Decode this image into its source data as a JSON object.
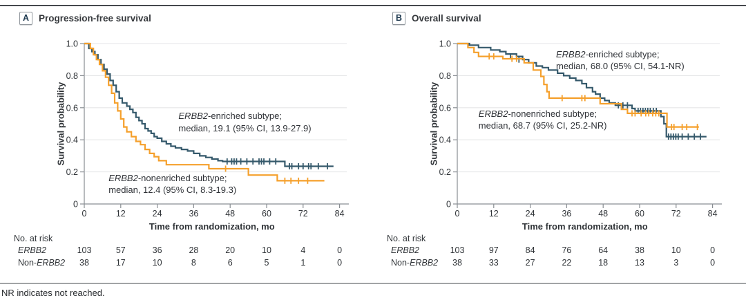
{
  "figure": {
    "footnote": "NR indicates not reached.",
    "colors": {
      "enriched": "#35596B",
      "nonenriched": "#F5A02C",
      "grid": "#E5E6E7",
      "axis": "#898E93",
      "rule": "#45484D"
    }
  },
  "chart_data": [
    {
      "type": "line",
      "subtype": "kaplan-meier-step",
      "panel_tag": "A",
      "title": "Progression-free survival",
      "xlabel": "Time from randomization, mo",
      "ylabel": "Survival probability",
      "xlim": [
        0,
        84
      ],
      "ylim": [
        0,
        1
      ],
      "xticks": [
        0,
        12,
        24,
        36,
        48,
        60,
        72,
        84
      ],
      "ytick_labels": [
        "1.0",
        "0.8",
        "0.6",
        "0.4",
        "0.2",
        "0"
      ],
      "ytick_values": [
        1,
        0.8,
        0.6,
        0.4,
        0.2,
        0
      ],
      "grid": "horizontal",
      "legend_position": "annotations-on-plot",
      "series": [
        {
          "gene": "ERBB2",
          "name_suffix": "-enriched subtype;",
          "full_name": "ERBB2-enriched subtype",
          "median_text": "median, 19.1 (95% CI, 13.9-27.9)",
          "color": "#35596B",
          "label_anchor": [
            31,
            0.585
          ],
          "end_time": 82,
          "steps": [
            [
              0,
              1
            ],
            [
              1.5,
              0.97
            ],
            [
              2.5,
              0.95
            ],
            [
              3.5,
              0.93
            ],
            [
              4.5,
              0.9
            ],
            [
              5.5,
              0.87
            ],
            [
              6.5,
              0.84
            ],
            [
              7.5,
              0.81
            ],
            [
              8.5,
              0.77
            ],
            [
              9.5,
              0.74
            ],
            [
              10.5,
              0.7
            ],
            [
              11.5,
              0.66
            ],
            [
              12.5,
              0.63
            ],
            [
              14,
              0.61
            ],
            [
              15,
              0.59
            ],
            [
              16,
              0.57
            ],
            [
              17,
              0.54
            ],
            [
              18,
              0.52
            ],
            [
              19,
              0.5
            ],
            [
              20,
              0.47
            ],
            [
              21,
              0.455
            ],
            [
              22,
              0.44
            ],
            [
              23,
              0.42
            ],
            [
              24,
              0.41
            ],
            [
              25.5,
              0.39
            ],
            [
              27,
              0.375
            ],
            [
              28.5,
              0.36
            ],
            [
              30,
              0.35
            ],
            [
              32,
              0.34
            ],
            [
              34,
              0.33
            ],
            [
              36,
              0.315
            ],
            [
              38,
              0.3
            ],
            [
              40,
              0.29
            ],
            [
              42,
              0.28
            ],
            [
              44,
              0.27
            ],
            [
              45.5,
              0.265
            ],
            [
              66,
              0.235
            ]
          ],
          "censors": [
            [
              47,
              0.265
            ],
            [
              48.5,
              0.265
            ],
            [
              49.3,
              0.265
            ],
            [
              50.1,
              0.265
            ],
            [
              51.5,
              0.265
            ],
            [
              53.5,
              0.265
            ],
            [
              55.5,
              0.265
            ],
            [
              57.5,
              0.265
            ],
            [
              58.3,
              0.265
            ],
            [
              59.1,
              0.265
            ],
            [
              61,
              0.265
            ],
            [
              63,
              0.265
            ],
            [
              67.5,
              0.235
            ],
            [
              68.3,
              0.235
            ],
            [
              70.5,
              0.235
            ],
            [
              72,
              0.235
            ],
            [
              73.8,
              0.235
            ],
            [
              74.6,
              0.235
            ],
            [
              77,
              0.235
            ],
            [
              80,
              0.235
            ]
          ]
        },
        {
          "gene": "ERBB2",
          "name_suffix": "-nonenriched subtype;",
          "full_name": "ERBB2-nonenriched subtype",
          "median_text": "median, 12.4 (95% CI, 8.3-19.3)",
          "color": "#F5A02C",
          "label_anchor": [
            8,
            0.2
          ],
          "end_time": 79,
          "steps": [
            [
              0,
              1
            ],
            [
              2,
              0.97
            ],
            [
              3,
              0.93
            ],
            [
              4,
              0.9
            ],
            [
              5,
              0.87
            ],
            [
              6,
              0.83
            ],
            [
              7,
              0.79
            ],
            [
              8,
              0.74
            ],
            [
              9,
              0.69
            ],
            [
              10,
              0.63
            ],
            [
              11,
              0.58
            ],
            [
              12,
              0.53
            ],
            [
              13,
              0.48
            ],
            [
              14,
              0.45
            ],
            [
              15.5,
              0.42
            ],
            [
              17,
              0.39
            ],
            [
              18.5,
              0.37
            ],
            [
              20,
              0.34
            ],
            [
              21.5,
              0.315
            ],
            [
              23,
              0.295
            ],
            [
              24.5,
              0.27
            ],
            [
              27,
              0.245
            ],
            [
              41,
              0.22
            ],
            [
              54,
              0.18
            ],
            [
              63.5,
              0.145
            ]
          ],
          "censors": [
            [
              46.5,
              0.22
            ],
            [
              66,
              0.145
            ],
            [
              68,
              0.145
            ],
            [
              70.5,
              0.145
            ],
            [
              73.5,
              0.145
            ]
          ]
        }
      ],
      "at_risk": {
        "heading": "No. at risk",
        "times": [
          0,
          12,
          24,
          36,
          48,
          60,
          72,
          84
        ],
        "rows": [
          {
            "label_prefix": "",
            "gene": "ERBB2",
            "counts": [
              103,
              57,
              36,
              28,
              20,
              10,
              4,
              0
            ]
          },
          {
            "label_prefix": "Non-",
            "gene": "ERBB2",
            "counts": [
              38,
              17,
              10,
              8,
              6,
              5,
              1,
              0
            ]
          }
        ]
      }
    },
    {
      "type": "line",
      "subtype": "kaplan-meier-step",
      "panel_tag": "B",
      "title": "Overall survival",
      "xlabel": "Time from randomization, mo",
      "ylabel": "Survival probability",
      "xlim": [
        0,
        84
      ],
      "ylim": [
        0,
        1
      ],
      "xticks": [
        0,
        12,
        24,
        36,
        48,
        60,
        72,
        84
      ],
      "ytick_labels": [
        "1.0",
        "0.8",
        "0.6",
        "0.4",
        "0.2",
        "0"
      ],
      "ytick_values": [
        1,
        0.8,
        0.6,
        0.4,
        0.2,
        0
      ],
      "grid": "horizontal",
      "legend_position": "annotations-on-plot",
      "series": [
        {
          "gene": "ERBB2",
          "name_suffix": "-enriched subtype;",
          "full_name": "ERBB2-enriched subtype",
          "median_text": "median, 68.0 (95% CI, 54.1-NR)",
          "color": "#35596B",
          "label_anchor": [
            32.5,
            0.97
          ],
          "end_time": 82,
          "steps": [
            [
              0,
              1
            ],
            [
              4,
              0.99
            ],
            [
              7,
              0.975
            ],
            [
              11,
              0.96
            ],
            [
              14,
              0.95
            ],
            [
              16,
              0.935
            ],
            [
              19.5,
              0.92
            ],
            [
              21.5,
              0.9
            ],
            [
              23.5,
              0.88
            ],
            [
              26,
              0.86
            ],
            [
              28,
              0.85
            ],
            [
              30,
              0.835
            ],
            [
              33,
              0.815
            ],
            [
              35,
              0.8
            ],
            [
              37,
              0.785
            ],
            [
              39,
              0.77
            ],
            [
              41,
              0.75
            ],
            [
              42.5,
              0.725
            ],
            [
              44.5,
              0.7
            ],
            [
              45.5,
              0.685
            ],
            [
              47,
              0.66
            ],
            [
              48.5,
              0.645
            ],
            [
              50,
              0.63
            ],
            [
              52,
              0.615
            ],
            [
              57.5,
              0.595
            ],
            [
              58.5,
              0.58
            ],
            [
              67,
              0.545
            ],
            [
              68,
              0.5
            ],
            [
              68.8,
              0.42
            ]
          ],
          "censors": [
            [
              17.5,
              0.92
            ],
            [
              20.3,
              0.9
            ],
            [
              53,
              0.615
            ],
            [
              54.5,
              0.615
            ],
            [
              56,
              0.615
            ],
            [
              59.5,
              0.58
            ],
            [
              60.3,
              0.58
            ],
            [
              61.1,
              0.58
            ],
            [
              61.9,
              0.58
            ],
            [
              62.7,
              0.58
            ],
            [
              63.5,
              0.58
            ],
            [
              64.5,
              0.58
            ],
            [
              65.5,
              0.58
            ],
            [
              69.5,
              0.42
            ],
            [
              70.3,
              0.42
            ],
            [
              71.1,
              0.42
            ],
            [
              71.9,
              0.42
            ],
            [
              72.7,
              0.42
            ],
            [
              74,
              0.42
            ],
            [
              76,
              0.42
            ],
            [
              78,
              0.42
            ],
            [
              80,
              0.42
            ]
          ]
        },
        {
          "gene": "ERBB2",
          "name_suffix": "-nonenriched subtype;",
          "full_name": "ERBB2-nonenriched subtype",
          "median_text": "median, 68.7 (95% CI, 25.2-NR)",
          "color": "#F5A02C",
          "label_anchor": [
            7,
            0.6
          ],
          "end_time": 79.5,
          "steps": [
            [
              0,
              1
            ],
            [
              3.5,
              0.975
            ],
            [
              5.5,
              0.945
            ],
            [
              7,
              0.92
            ],
            [
              15,
              0.905
            ],
            [
              22,
              0.88
            ],
            [
              25,
              0.835
            ],
            [
              27.5,
              0.795
            ],
            [
              28.5,
              0.745
            ],
            [
              29.5,
              0.7
            ],
            [
              30.2,
              0.66
            ],
            [
              47,
              0.625
            ],
            [
              54,
              0.59
            ],
            [
              56,
              0.565
            ],
            [
              69,
              0.48
            ]
          ],
          "censors": [
            [
              10.5,
              0.92
            ],
            [
              12,
              0.92
            ],
            [
              18,
              0.905
            ],
            [
              19.5,
              0.905
            ],
            [
              34.5,
              0.66
            ],
            [
              41,
              0.66
            ],
            [
              42,
              0.66
            ],
            [
              57.5,
              0.565
            ],
            [
              58.5,
              0.565
            ],
            [
              60.5,
              0.565
            ],
            [
              62,
              0.565
            ],
            [
              63,
              0.565
            ],
            [
              64.3,
              0.565
            ],
            [
              65.3,
              0.565
            ],
            [
              66.3,
              0.565
            ],
            [
              70.5,
              0.48
            ],
            [
              71.3,
              0.48
            ],
            [
              74,
              0.48
            ],
            [
              75.5,
              0.48
            ],
            [
              79,
              0.48
            ]
          ]
        }
      ],
      "at_risk": {
        "heading": "No. at risk",
        "times": [
          0,
          12,
          24,
          36,
          48,
          60,
          72,
          84
        ],
        "rows": [
          {
            "label_prefix": "",
            "gene": "ERBB2",
            "counts": [
              103,
              97,
              84,
              76,
              64,
              38,
              10,
              0
            ]
          },
          {
            "label_prefix": "Non-",
            "gene": "ERBB2",
            "counts": [
              38,
              33,
              27,
              22,
              18,
              13,
              3,
              0
            ]
          }
        ]
      }
    }
  ]
}
